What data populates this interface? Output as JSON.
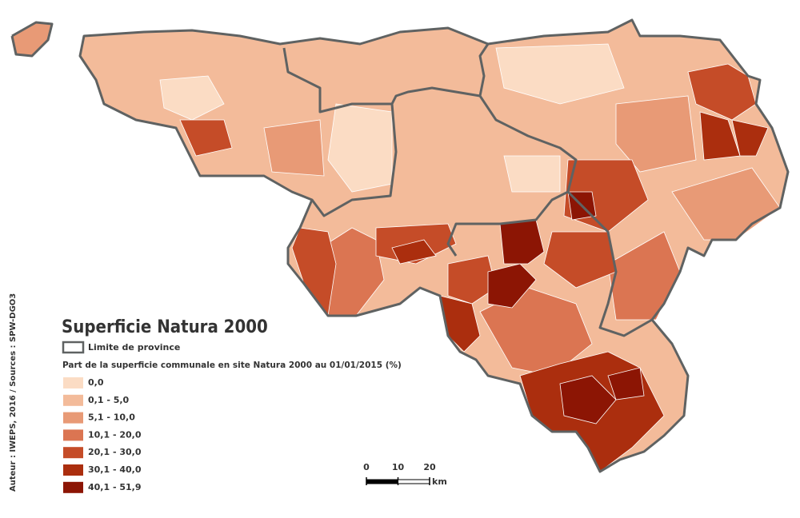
{
  "title": "Superficie Natura 2000",
  "province_legend": "Limite de province",
  "subtitle": "Part de la superficie communale en site Natura 2000 au 01/01/2015 (%)",
  "legend": {
    "classes": [
      {
        "label": "0,0",
        "color": "#fbdcc4"
      },
      {
        "label": "0,1 - 5,0",
        "color": "#f3bb9a"
      },
      {
        "label": "5,1 - 10,0",
        "color": "#e89a76"
      },
      {
        "label": "10,1 - 20,0",
        "color": "#db7552"
      },
      {
        "label": "20,1 - 30,0",
        "color": "#c54c28"
      },
      {
        "label": "30,1 - 40,0",
        "color": "#ab2e0e"
      },
      {
        "label": "40,1 - 51,9",
        "color": "#8c1504"
      }
    ]
  },
  "scale_bar": {
    "ticks": [
      0,
      10,
      20
    ],
    "unit": "km"
  },
  "credit": "Auteur : IWEPS, 2016 / Sources : SPW-DGO3"
}
